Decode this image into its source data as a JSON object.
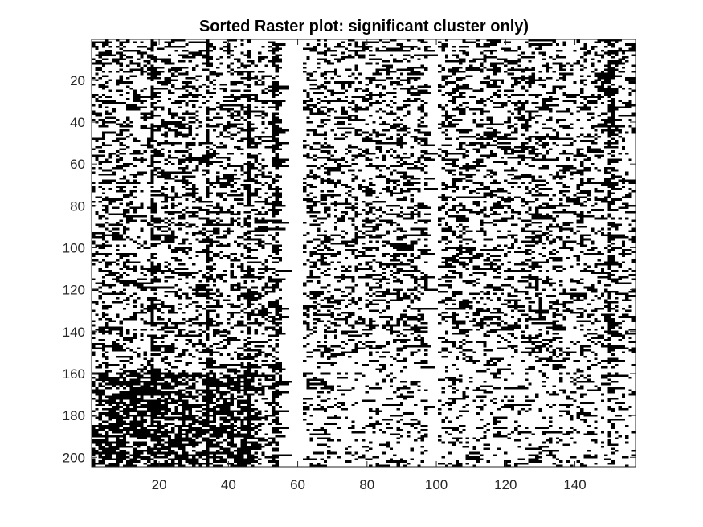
{
  "chart_data": {
    "type": "heatmap",
    "title": "Sorted Raster plot: significant cluster only)",
    "xlabel": "",
    "ylabel": "",
    "xlim": [
      0.5,
      157.5
    ],
    "ylim": [
      0.5,
      204.5
    ],
    "y_direction": "reverse",
    "grid": false,
    "x_ticks": [
      20,
      40,
      60,
      80,
      100,
      120,
      140
    ],
    "y_ticks": [
      20,
      40,
      60,
      80,
      100,
      120,
      140,
      160,
      180,
      200
    ],
    "n_columns": 157,
    "n_rows": 204,
    "colormap": [
      "#ffffff",
      "#000000"
    ],
    "dense_columns": [
      18,
      34,
      46,
      53,
      54,
      150,
      151
    ],
    "blank_column_ranges": [
      [
        56,
        61
      ],
      [
        98,
        100
      ]
    ],
    "dense_block": {
      "columns": [
        1,
        47
      ],
      "rows": [
        160,
        204
      ]
    }
  }
}
